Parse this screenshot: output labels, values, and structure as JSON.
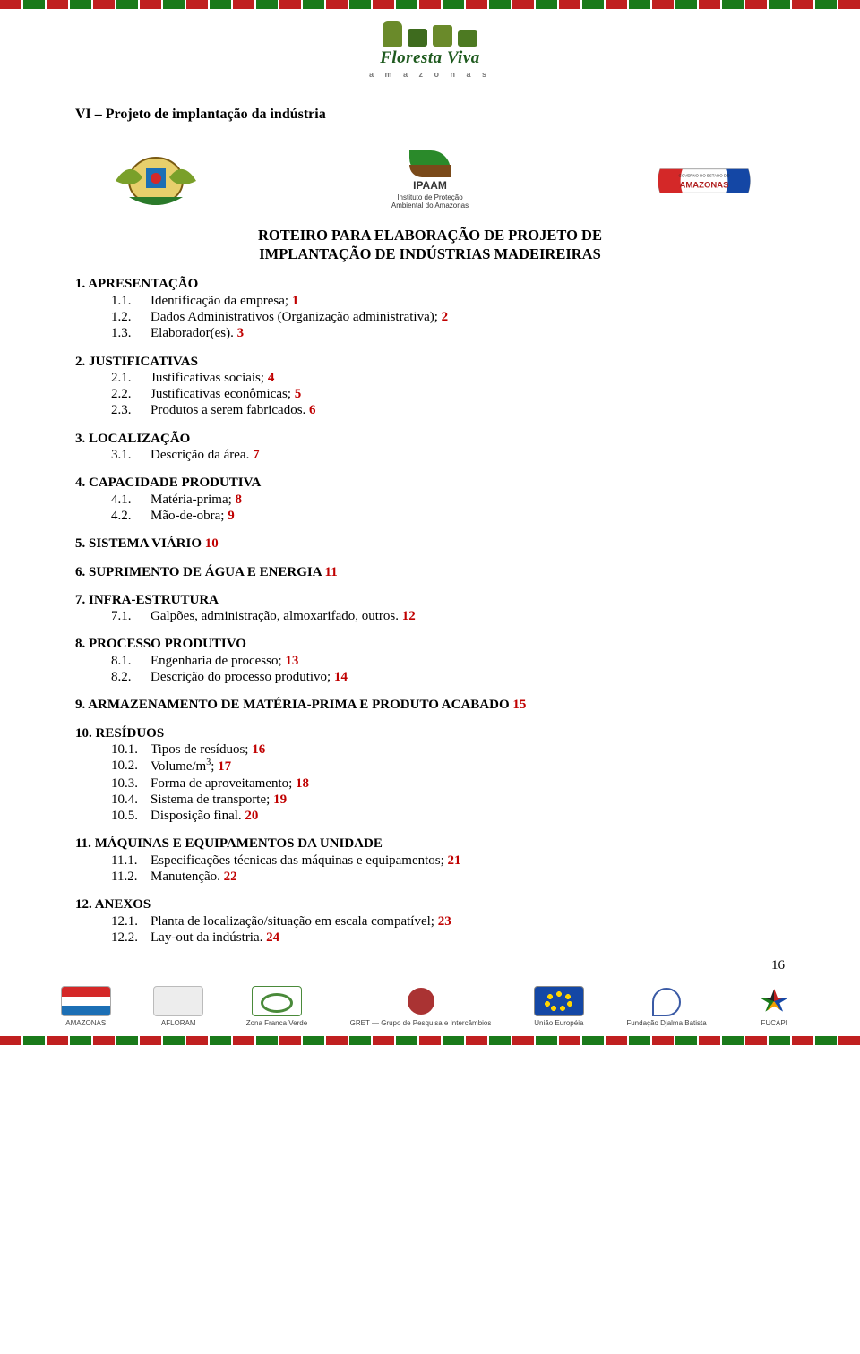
{
  "colors": {
    "highlight": "#c00000",
    "text": "#000000",
    "green_dark": "#1e5a1e",
    "stripe_red": "#c02020",
    "stripe_green": "#1a7a1a"
  },
  "typography": {
    "body_family": "Times New Roman",
    "body_size_pt": 12,
    "title_size_pt": 13,
    "title_weight": "bold"
  },
  "header_logo": {
    "title": "Floresta Viva",
    "subtitle": "a m a z o n a s"
  },
  "crest_labels": {
    "center_top": "IPAAM",
    "center_sub": "Instituto de Proteção Ambiental do Amazonas",
    "right_top": "GOVERNO DO ESTADO DO",
    "right_main": "AMAZONAS"
  },
  "lead": "VI – Projeto de implantação da indústria",
  "title_line1": "ROTEIRO PARA ELABORAÇÃO DE PROJETO DE",
  "title_line2": "IMPLANTAÇÃO DE INDÚSTRIAS MADEIREIRAS",
  "outline": [
    {
      "n": "1.",
      "label": "APRESENTAÇÃO",
      "lvl": 1
    },
    {
      "n": "1.1.",
      "label": "Identificação da empresa;",
      "suffix": "1",
      "lvl": 2
    },
    {
      "n": "1.2.",
      "label": "Dados Administrativos (Organização administrativa);",
      "suffix": "2",
      "lvl": 2
    },
    {
      "n": "1.3.",
      "label": "Elaborador(es).",
      "suffix": "3",
      "lvl": 2
    },
    {
      "n": "2.",
      "label": "JUSTIFICATIVAS",
      "lvl": 1
    },
    {
      "n": "2.1.",
      "label": "Justificativas sociais;",
      "suffix": "4",
      "lvl": 2
    },
    {
      "n": "2.2.",
      "label": "Justificativas econômicas;",
      "suffix": "5",
      "lvl": 2
    },
    {
      "n": "2.3.",
      "label": "Produtos a serem fabricados.",
      "suffix": "6",
      "lvl": 2
    },
    {
      "n": "3.",
      "label": "LOCALIZAÇÃO",
      "lvl": 1
    },
    {
      "n": "3.1.",
      "label": "Descrição da área.",
      "suffix": "7",
      "lvl": 2
    },
    {
      "n": "4.",
      "label": "CAPACIDADE PRODUTIVA",
      "lvl": 1
    },
    {
      "n": "4.1.",
      "label": "Matéria-prima;",
      "suffix": "8",
      "lvl": 2
    },
    {
      "n": "4.2.",
      "label": "Mão-de-obra;",
      "suffix": "9",
      "lvl": 2
    },
    {
      "n": "5.",
      "label": "SISTEMA VIÁRIO",
      "suffix": "10",
      "lvl": 1
    },
    {
      "n": "6.",
      "label": "SUPRIMENTO DE ÁGUA E ENERGIA",
      "suffix": "11",
      "lvl": 1
    },
    {
      "n": "7.",
      "label": "INFRA-ESTRUTURA",
      "lvl": 1
    },
    {
      "n": "7.1.",
      "label": "Galpões, administração, almoxarifado, outros.",
      "suffix": "12",
      "lvl": 2
    },
    {
      "n": "8.",
      "label": "PROCESSO PRODUTIVO",
      "lvl": 1
    },
    {
      "n": "8.1.",
      "label": "Engenharia de processo;",
      "suffix": "13",
      "lvl": 2
    },
    {
      "n": "8.2.",
      "label": "Descrição do processo produtivo;",
      "suffix": "14",
      "lvl": 2
    },
    {
      "n": "9.",
      "label": "ARMAZENAMENTO DE MATÉRIA-PRIMA E PRODUTO ACABADO",
      "suffix": "15",
      "lvl": 1
    },
    {
      "n": "10.",
      "label": "RESÍDUOS",
      "lvl": 1
    },
    {
      "n": "10.1.",
      "label": "Tipos de resíduos;",
      "suffix": "16",
      "lvl": 2
    },
    {
      "n": "10.2.",
      "label": "Volume/m³;",
      "suffix": "17",
      "lvl": 2,
      "sup3": true
    },
    {
      "n": "10.3.",
      "label": "Forma de aproveitamento;",
      "suffix": "18",
      "lvl": 2
    },
    {
      "n": "10.4.",
      "label": "Sistema de transporte;",
      "suffix": "19",
      "lvl": 2
    },
    {
      "n": "10.5.",
      "label": "Disposição final.",
      "suffix": "20",
      "lvl": 2
    },
    {
      "n": "11.",
      "label": "MÁQUINAS E EQUIPAMENTOS DA UNIDADE",
      "lvl": 1
    },
    {
      "n": "11.1.",
      "label": "Especificações técnicas das máquinas e equipamentos;",
      "suffix": "21",
      "lvl": 2
    },
    {
      "n": "11.2.",
      "label": "Manutenção.",
      "suffix": "22",
      "lvl": 2
    },
    {
      "n": "12.",
      "label": "ANEXOS",
      "lvl": 1
    },
    {
      "n": "12.1.",
      "label": "Planta de localização/situação em escala compatível;",
      "suffix": "23",
      "lvl": 2
    },
    {
      "n": "12.2.",
      "label": "Lay-out da indústria.",
      "suffix": "24",
      "lvl": 2
    }
  ],
  "page_number": "16",
  "footer_logos": [
    {
      "caption": "AMAZONAS"
    },
    {
      "caption": "AFLORAM"
    },
    {
      "caption": "Zona Franca Verde"
    },
    {
      "caption": "GRET — Grupo de Pesquisa e Intercâmbios"
    },
    {
      "caption": "União Européia"
    },
    {
      "caption": "Fundação Djalma Batista"
    },
    {
      "caption": "FUCAPI"
    }
  ]
}
